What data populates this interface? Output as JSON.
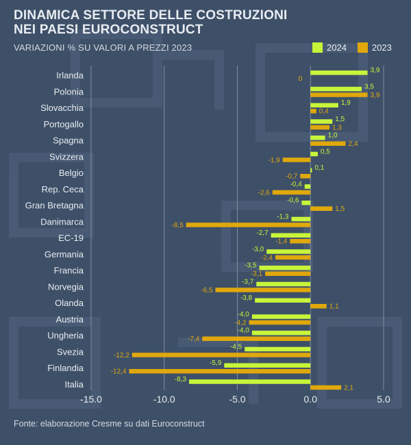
{
  "header": {
    "title_line1": "DINAMICA SETTORE DELLE COSTRUZIONI",
    "title_line2": "NEI PAESI EUROCONSTRUCT",
    "subtitle": "VARIAZIONI % SU VALORI A PREZZI 2023"
  },
  "footer": {
    "source": "Fonte: elaborazione Cresme su dati Euroconstruct"
  },
  "colors": {
    "background": "#3e5068",
    "series_2024": "#c8f53a",
    "series_2023": "#e0a80c",
    "text": "#e8ecf2",
    "gridline": "#8d9bb0"
  },
  "chart_data": {
    "type": "bar",
    "orientation": "horizontal",
    "categories": [
      "Irlanda",
      "Polonia",
      "Slovacchia",
      "Portogallo",
      "Spagna",
      "Svizzera",
      "Belgio",
      "Rep. Ceca",
      "Gran Bretagna",
      "Danimarca",
      "EC-19",
      "Germania",
      "Francia",
      "Norvegia",
      "Olanda",
      "Austria",
      "Ungheria",
      "Svezia",
      "Finlandia",
      "Italia"
    ],
    "series": [
      {
        "name": "2024",
        "values": [
          3.9,
          3.5,
          1.9,
          1.5,
          1.0,
          0.5,
          0.1,
          -0.4,
          -0.6,
          -1.3,
          -2.7,
          -3.0,
          -3.5,
          -3.7,
          -3.8,
          -4.0,
          -4.0,
          -4.5,
          -5.9,
          -8.3
        ],
        "labels": [
          "3,9",
          "3,5",
          "1,9",
          "1,5",
          "1,0",
          "0,5",
          "0,1",
          "-0,4",
          "-0,6",
          "-1,3",
          "-2,7",
          "-3,0",
          "-3,5",
          "-3,7",
          "-3,8",
          "-4,0",
          "-4,0",
          "-4,5",
          "-5,9",
          "-8,3"
        ]
      },
      {
        "name": "2023",
        "values": [
          0,
          3.9,
          0.4,
          1.3,
          2.4,
          -1.9,
          -0.7,
          -2.6,
          1.5,
          -8.5,
          -1.4,
          -2.4,
          -3.1,
          -6.5,
          1.1,
          -4.2,
          -7.4,
          -12.2,
          -12.4,
          2.1
        ],
        "labels": [
          "0",
          "3,9",
          "0,4",
          "1,3",
          "2,4",
          "-1,9",
          "-0,7",
          "-2,6",
          "1,5",
          "-8,5",
          "-1,4",
          "-2,4",
          "-3,1",
          "-6,5",
          "1,1",
          "-4,2",
          "-7,4",
          "-12,2",
          "-12,4",
          "2,1"
        ]
      }
    ],
    "xlim": [
      -15,
      5
    ],
    "xticks": [
      -15,
      -10,
      -5,
      0,
      5
    ],
    "xtick_labels": [
      "-15.0",
      "-10.0",
      "-5.0",
      "0.0",
      "5.0"
    ],
    "grid": true,
    "legend": "top-right"
  }
}
